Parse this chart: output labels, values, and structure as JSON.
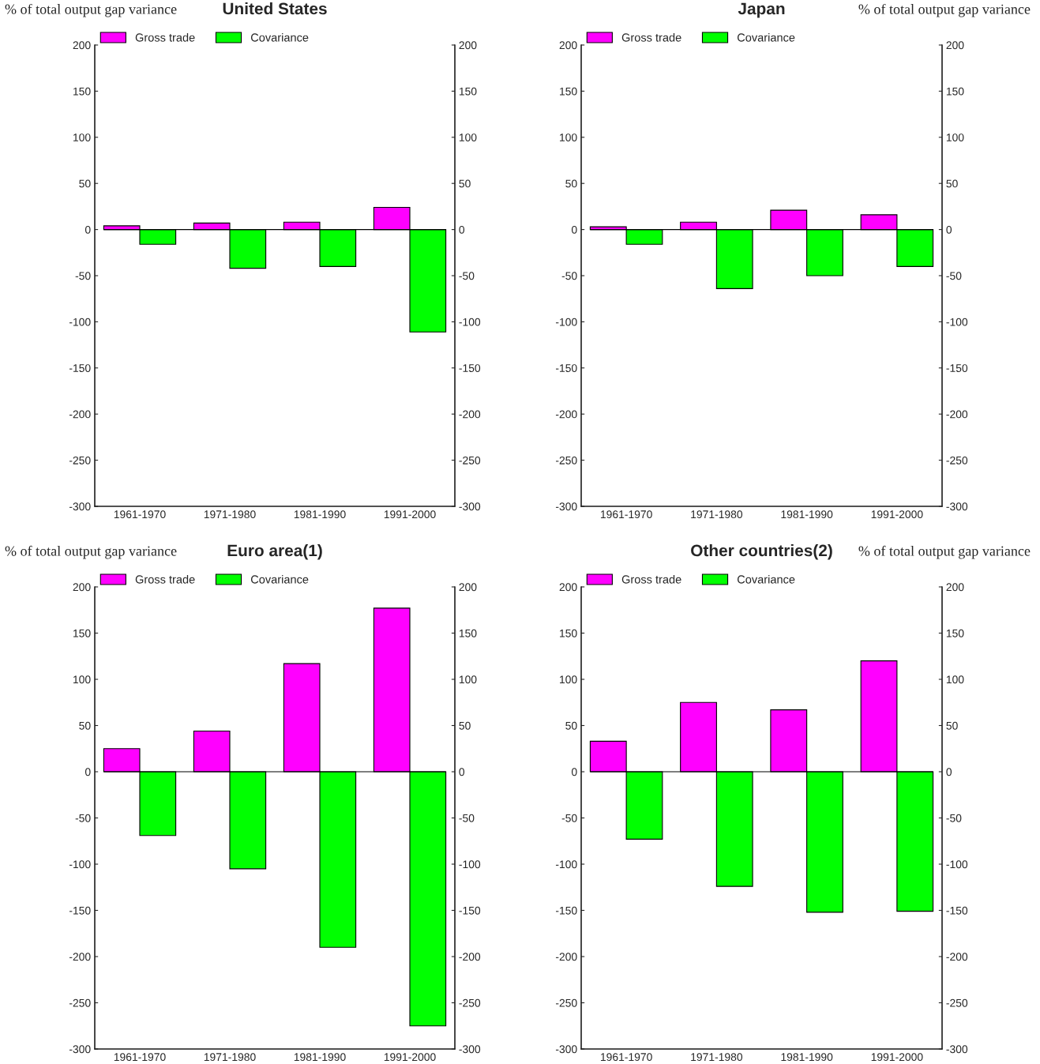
{
  "chart_data": [
    {
      "type": "bar",
      "title": "United States",
      "ylabel": "% of total output gap variance",
      "categories": [
        "1961-1970",
        "1971-1980",
        "1981-1990",
        "1991-2000"
      ],
      "series": [
        {
          "name": "Gross trade",
          "color": "#ff00ff",
          "values": [
            4,
            7,
            8,
            24
          ]
        },
        {
          "name": "Covariance",
          "color": "#00ff00",
          "values": [
            -16,
            -42,
            -40,
            -111
          ]
        }
      ],
      "ref_lines": [
        {
          "axis": "y",
          "value": 0
        }
      ],
      "ylim": [
        -300,
        200
      ],
      "yticks": [
        -300,
        -250,
        -200,
        -150,
        -100,
        -50,
        0,
        50,
        100,
        150,
        200
      ],
      "y2lim": [
        -300,
        200
      ],
      "y2ticks": [
        -300,
        -250,
        -200,
        -150,
        -100,
        -50,
        0,
        50,
        100,
        150,
        200
      ],
      "legend": "top left",
      "grid": false
    },
    {
      "type": "bar",
      "title": "Japan",
      "y2label": "% of total output gap variance",
      "categories": [
        "1961-1970",
        "1971-1980",
        "1981-1990",
        "1991-2000"
      ],
      "series": [
        {
          "name": "Gross trade",
          "color": "#ff00ff",
          "values": [
            3,
            8,
            21,
            16
          ]
        },
        {
          "name": "Covariance",
          "color": "#00ff00",
          "values": [
            -16,
            -64,
            -50,
            -40
          ]
        }
      ],
      "ref_lines": [
        {
          "axis": "y",
          "value": 0
        }
      ],
      "ylim": [
        -300,
        200
      ],
      "yticks": [
        -300,
        -250,
        -200,
        -150,
        -100,
        -50,
        0,
        50,
        100,
        150,
        200
      ],
      "y2lim": [
        -300,
        200
      ],
      "y2ticks": [
        -300,
        -250,
        -200,
        -150,
        -100,
        -50,
        0,
        50,
        100,
        150,
        200
      ],
      "legend": "top left",
      "grid": false
    },
    {
      "type": "bar",
      "title": "Euro area(1)",
      "ylabel": "% of total output gap variance",
      "categories": [
        "1961-1970",
        "1971-1980",
        "1981-1990",
        "1991-2000"
      ],
      "series": [
        {
          "name": "Gross trade",
          "color": "#ff00ff",
          "values": [
            25,
            44,
            117,
            177
          ]
        },
        {
          "name": "Covariance",
          "color": "#00ff00",
          "values": [
            -69,
            -105,
            -190,
            -275
          ]
        }
      ],
      "ref_lines": [
        {
          "axis": "y",
          "value": 0
        }
      ],
      "ylim": [
        -300,
        200
      ],
      "yticks": [
        -300,
        -250,
        -200,
        -150,
        -100,
        -50,
        0,
        50,
        100,
        150,
        200
      ],
      "y2lim": [
        -300,
        200
      ],
      "y2ticks": [
        -300,
        -250,
        -200,
        -150,
        -100,
        -50,
        0,
        50,
        100,
        150,
        200
      ],
      "legend": "top left",
      "grid": false
    },
    {
      "type": "bar",
      "title": "Other countries(2)",
      "y2label": "% of total output gap variance",
      "categories": [
        "1961-1970",
        "1971-1980",
        "1981-1990",
        "1991-2000"
      ],
      "series": [
        {
          "name": "Gross trade",
          "color": "#ff00ff",
          "values": [
            33,
            75,
            67,
            120
          ]
        },
        {
          "name": "Covariance",
          "color": "#00ff00",
          "values": [
            -73,
            -124,
            -152,
            -151
          ]
        }
      ],
      "ref_lines": [
        {
          "axis": "y",
          "value": 0
        }
      ],
      "ylim": [
        -300,
        200
      ],
      "yticks": [
        -300,
        -250,
        -200,
        -150,
        -100,
        -50,
        0,
        50,
        100,
        150,
        200
      ],
      "y2lim": [
        -300,
        200
      ],
      "y2ticks": [
        -300,
        -250,
        -200,
        -150,
        -100,
        -50,
        0,
        50,
        100,
        150,
        200
      ],
      "legend": "top left",
      "grid": false
    }
  ]
}
